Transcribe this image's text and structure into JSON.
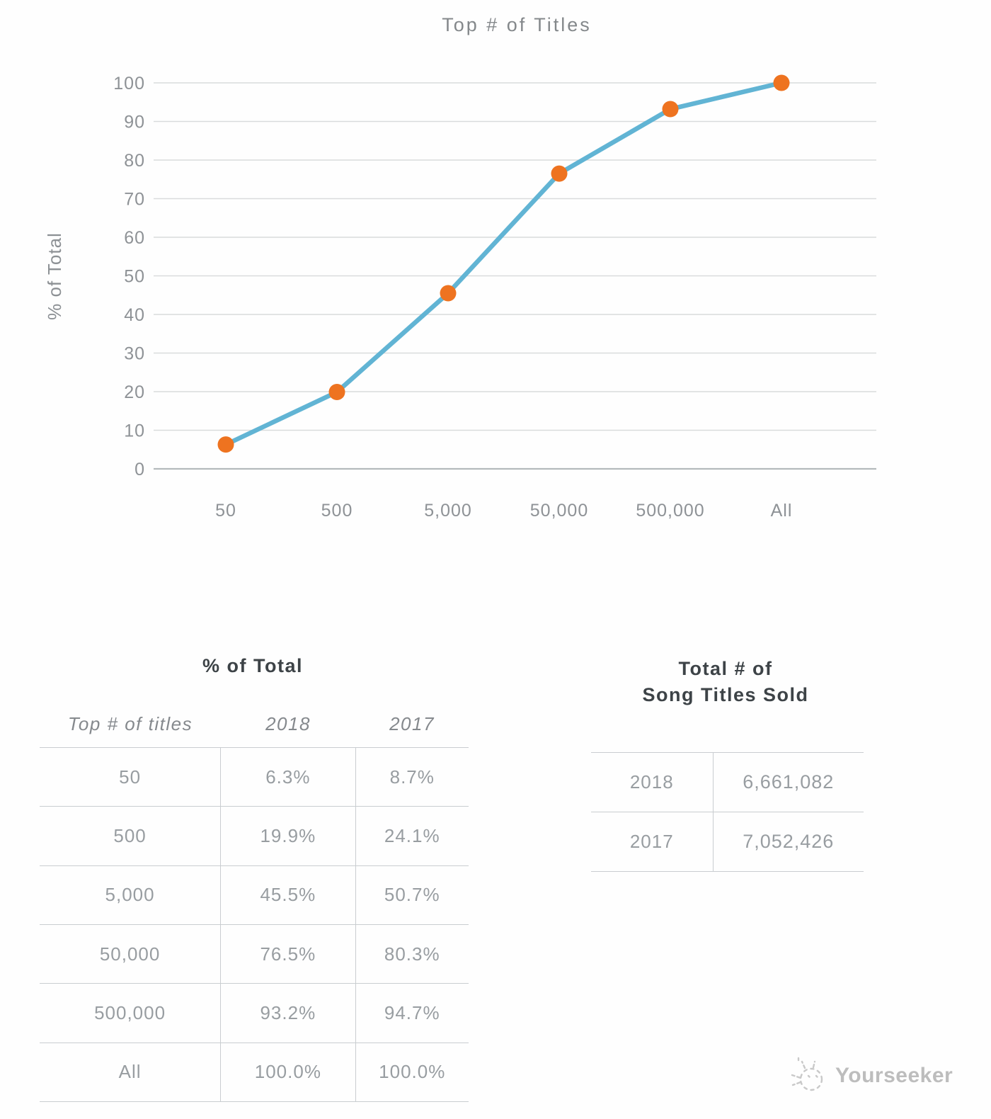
{
  "chart_data": {
    "type": "line",
    "title": "Top # of Titles",
    "xlabel": "",
    "ylabel": "% of Total",
    "categories": [
      "50",
      "500",
      "5,000",
      "50,000",
      "500,000",
      "All"
    ],
    "series": [
      {
        "name": "2018",
        "values": [
          6.3,
          19.9,
          45.5,
          76.5,
          93.2,
          100.0
        ]
      }
    ],
    "ylim": [
      0,
      100
    ],
    "ytick_step": 10,
    "grid": true,
    "legend": "none",
    "line_color": "#61b4d4",
    "marker_color": "#ee7320",
    "grid_color": "#d9dbdc",
    "baseline_color": "#b5babc",
    "tick_label_color": "#8e9296"
  },
  "percent_table": {
    "title": "% of Total",
    "columns": [
      "Top # of titles",
      "2018",
      "2017"
    ],
    "rows": [
      {
        "label": "50",
        "y2018": "6.3%",
        "y2017": "8.7%"
      },
      {
        "label": "500",
        "y2018": "19.9%",
        "y2017": "24.1%"
      },
      {
        "label": "5,000",
        "y2018": "45.5%",
        "y2017": "50.7%"
      },
      {
        "label": "50,000",
        "y2018": "76.5%",
        "y2017": "80.3%"
      },
      {
        "label": "500,000",
        "y2018": "93.2%",
        "y2017": "94.7%"
      },
      {
        "label": "All",
        "y2018": "100.0%",
        "y2017": "100.0%"
      }
    ]
  },
  "totals_table": {
    "title_line1": "Total # of",
    "title_line2": "Song Titles Sold",
    "rows": [
      {
        "year": "2018",
        "total": "6,661,082"
      },
      {
        "year": "2017",
        "total": "7,052,426"
      }
    ]
  },
  "watermark": {
    "brand": "Yourseeker"
  }
}
